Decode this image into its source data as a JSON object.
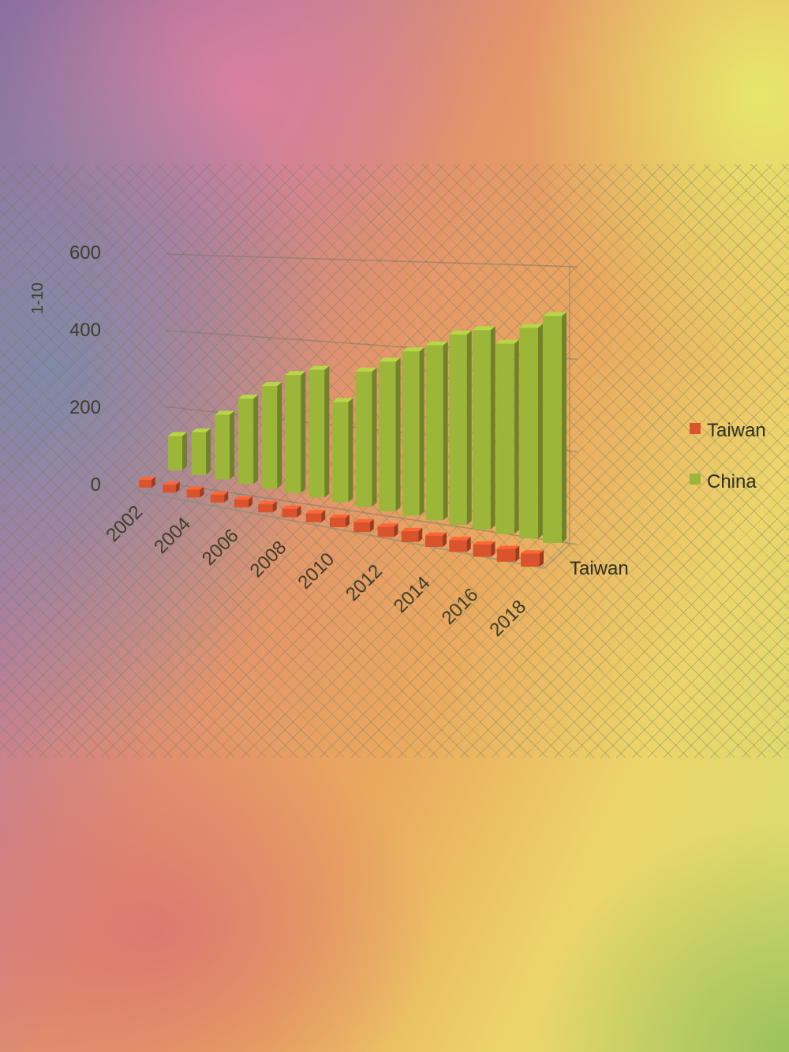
{
  "chart_data": {
    "type": "bar",
    "variant": "3d-clustered-column",
    "title": "",
    "ylabel": "1-10",
    "ylim": [
      0,
      600
    ],
    "yticks": [
      0,
      200,
      400,
      600
    ],
    "grid": true,
    "legend_position": "right",
    "x_tick_labels": [
      "2002",
      "2004",
      "2006",
      "2008",
      "2010",
      "2012",
      "2014",
      "2016",
      "2018"
    ],
    "depth_axis_label": "Taiwan",
    "categories": [
      "2002",
      "2003",
      "2004",
      "2005",
      "2006",
      "2007",
      "2008",
      "2009",
      "2010",
      "2011",
      "2012",
      "2013",
      "2014",
      "2015",
      "2016",
      "2017",
      "2018"
    ],
    "series": [
      {
        "name": "Taiwan",
        "color": "#d9542c",
        "values": [
          25,
          25,
          25,
          25,
          25,
          25,
          25,
          25,
          25,
          25,
          25,
          25,
          25,
          25,
          25,
          25,
          25
        ]
      },
      {
        "name": "China",
        "color": "#9cb63a",
        "values": [
          90,
          110,
          165,
          215,
          255,
          290,
          310,
          240,
          320,
          350,
          380,
          400,
          430,
          445,
          420,
          460,
          490
        ]
      }
    ]
  }
}
